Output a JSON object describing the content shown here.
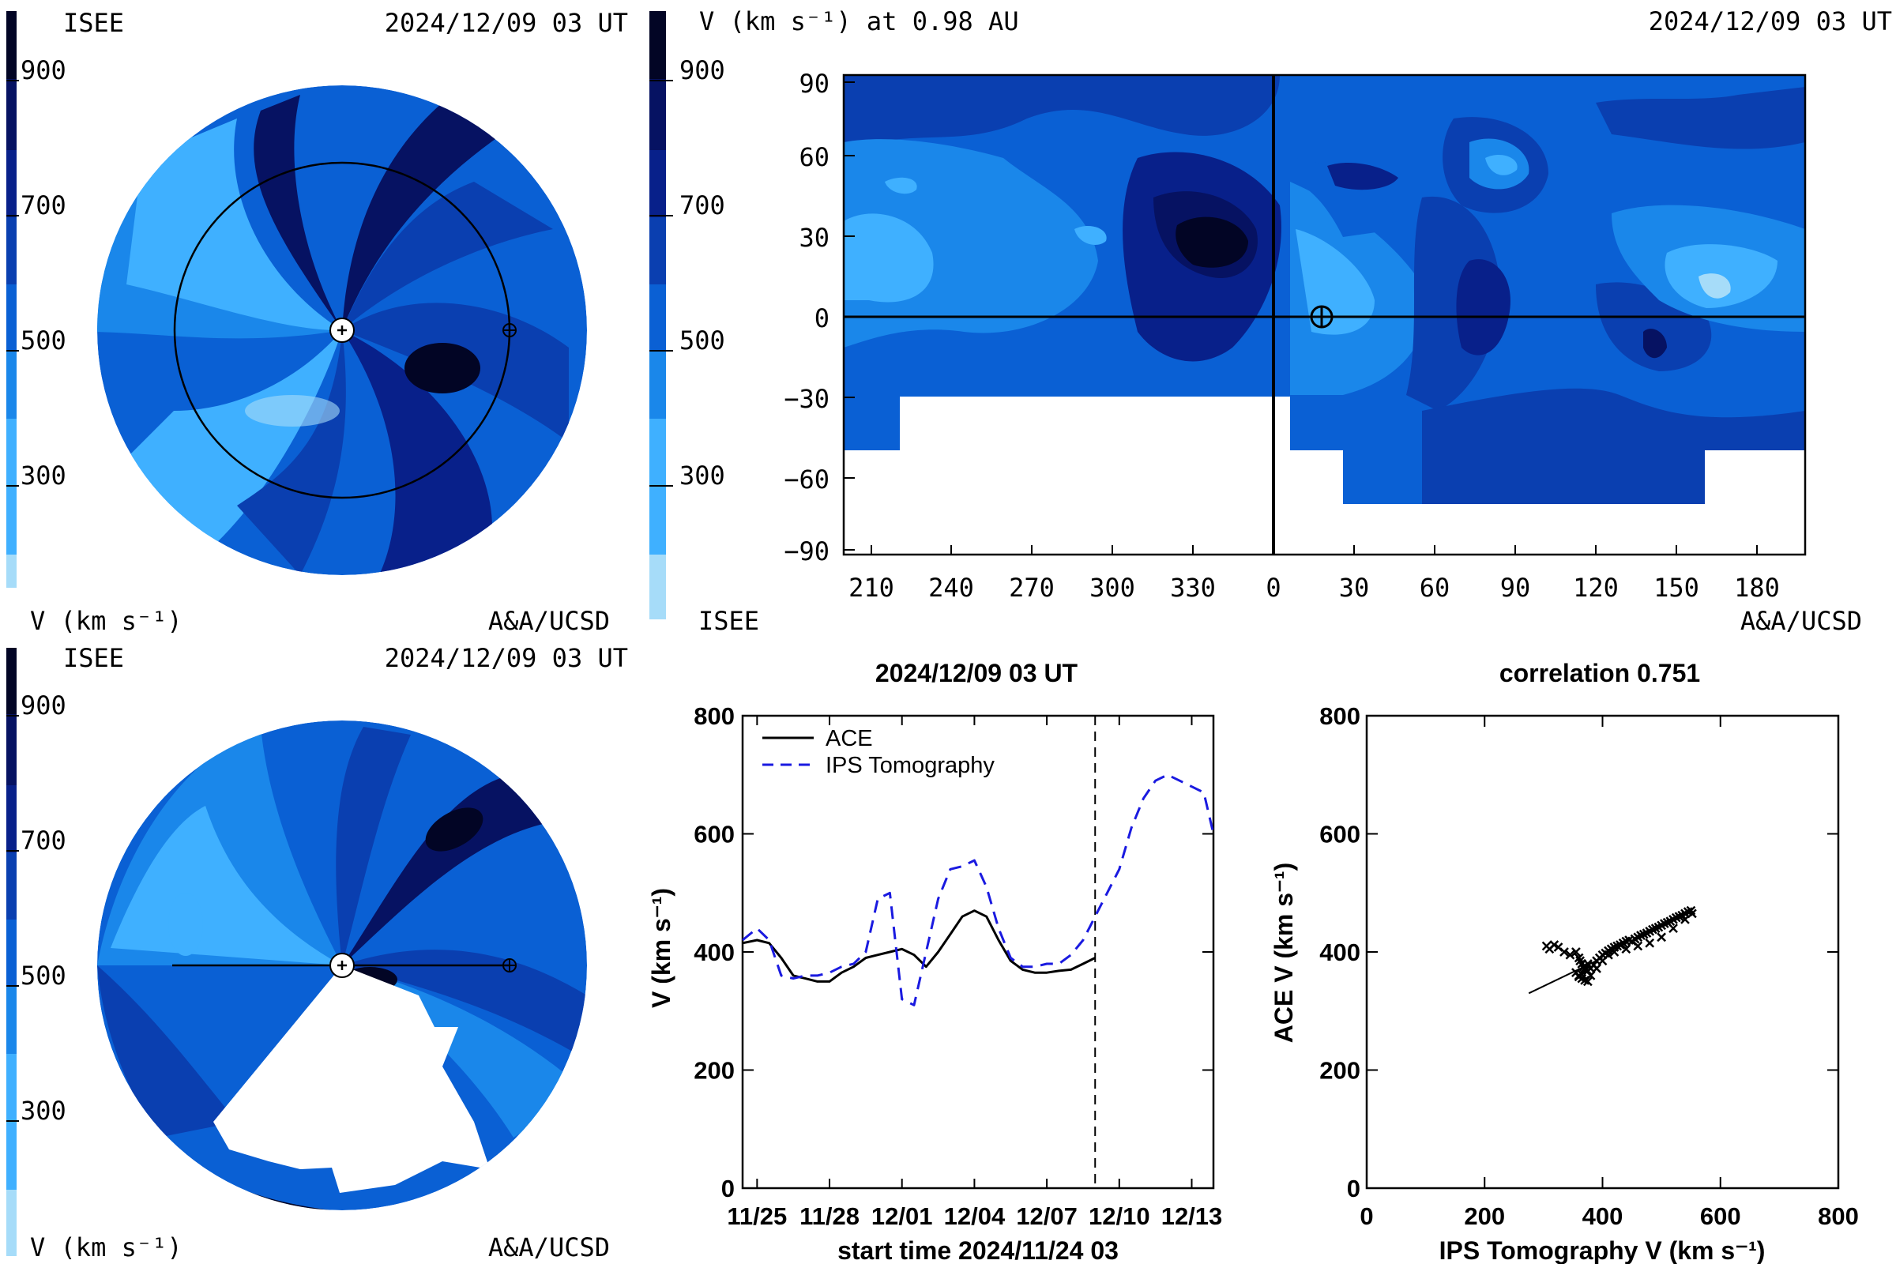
{
  "colors": {
    "levels": [
      "#a6dcf9",
      "#3fb0ff",
      "#1a87ea",
      "#0a60d4",
      "#0a3fb0",
      "#08208a",
      "#061262",
      "#020525"
    ],
    "background": "#ffffff",
    "ace_line": "#000000",
    "ips_line": "#1a1ae0"
  },
  "colorbar": {
    "ticks": [
      "900",
      "700",
      "500",
      "300"
    ],
    "tick_values": [
      900,
      700,
      500,
      300
    ],
    "range": [
      200,
      1000
    ]
  },
  "top_left": {
    "org": "ISEE",
    "time": "2024/12/09 03 UT",
    "units": "V (km s⁻¹)",
    "credit": "A&A/UCSD"
  },
  "bottom_left": {
    "org": "ISEE",
    "time": "2024/12/09 03 UT",
    "units": "V (km s⁻¹)",
    "credit": "A&A/UCSD"
  },
  "synoptic_map": {
    "title": "V (km s⁻¹) at 0.98 AU",
    "time": "2024/12/09 03 UT",
    "org": "ISEE",
    "credit": "A&A/UCSD",
    "lat_ticks": [
      "90",
      "60",
      "30",
      "0",
      "−30",
      "−60",
      "−90"
    ],
    "lon_ticks": [
      "210",
      "240",
      "270",
      "300",
      "330",
      "0",
      "30",
      "60",
      "90",
      "120",
      "150",
      "180"
    ]
  },
  "chart_data": [
    {
      "type": "line",
      "title": "2024/12/09 03 UT",
      "xlabel": "start time 2024/11/24 03",
      "ylabel": "V (km s⁻¹)",
      "x_ticks": [
        "11/25",
        "11/28",
        "12/01",
        "12/04",
        "12/07",
        "12/10",
        "12/13"
      ],
      "x_tick_days": [
        1,
        4,
        7,
        10,
        13,
        16,
        19
      ],
      "xlim_days": [
        0.4,
        19.9
      ],
      "y_ticks": [
        "800",
        "600",
        "400",
        "200",
        "0"
      ],
      "ylim": [
        0,
        800
      ],
      "now_marker_day": 15.0,
      "series": [
        {
          "name": "ACE",
          "style": "solid",
          "x": [
            0.4,
            1.0,
            1.5,
            2.0,
            2.5,
            3.0,
            3.5,
            4.0,
            4.5,
            5.0,
            5.5,
            6.0,
            6.5,
            7.0,
            7.5,
            8.0,
            8.5,
            9.0,
            9.5,
            10.0,
            10.5,
            11.0,
            11.5,
            12.0,
            12.5,
            13.0,
            13.5,
            14.0,
            14.5,
            15.0
          ],
          "y": [
            415,
            420,
            415,
            390,
            360,
            355,
            350,
            350,
            365,
            375,
            390,
            395,
            400,
            405,
            395,
            375,
            400,
            430,
            460,
            470,
            460,
            420,
            385,
            370,
            365,
            365,
            368,
            370,
            380,
            390
          ]
        },
        {
          "name": "IPS Tomography",
          "style": "dashed",
          "x": [
            0.4,
            1.0,
            1.5,
            2.0,
            2.5,
            3.0,
            3.5,
            4.0,
            4.5,
            5.0,
            5.5,
            6.0,
            6.5,
            7.0,
            7.5,
            8.0,
            8.5,
            9.0,
            9.5,
            10.0,
            10.5,
            11.0,
            11.5,
            12.0,
            12.5,
            13.0,
            13.5,
            14.0,
            14.5,
            15.0,
            15.5,
            16.0,
            16.5,
            17.0,
            17.5,
            18.0,
            18.5,
            19.0,
            19.5,
            19.9
          ],
          "y": [
            420,
            440,
            420,
            360,
            355,
            360,
            360,
            365,
            375,
            380,
            400,
            490,
            500,
            320,
            310,
            400,
            490,
            540,
            545,
            555,
            510,
            440,
            390,
            375,
            375,
            380,
            380,
            395,
            420,
            460,
            500,
            540,
            610,
            660,
            690,
            700,
            690,
            680,
            670,
            600
          ]
        }
      ]
    },
    {
      "type": "scatter",
      "title": "correlation 0.751",
      "xlabel": "IPS Tomography V (km s⁻¹)",
      "ylabel": "ACE V (km s⁻¹)",
      "x_ticks": [
        "0",
        "200",
        "400",
        "600",
        "800"
      ],
      "y_ticks": [
        "800",
        "600",
        "400",
        "200",
        "0"
      ],
      "xlim": [
        0,
        800
      ],
      "ylim": [
        0,
        800
      ],
      "fit_line": {
        "x": [
          275,
          400
        ],
        "y": [
          330,
          390
        ]
      },
      "points": {
        "x": [
          305,
          310,
          318,
          325,
          335,
          345,
          355,
          360,
          362,
          365,
          368,
          370,
          372,
          375,
          380,
          385,
          390,
          395,
          400,
          405,
          410,
          415,
          420,
          425,
          430,
          435,
          440,
          445,
          450,
          455,
          460,
          465,
          470,
          475,
          480,
          485,
          490,
          495,
          500,
          505,
          510,
          515,
          520,
          525,
          530,
          535,
          540,
          545,
          550,
          552,
          360,
          365,
          370,
          375,
          380,
          390,
          400,
          410,
          420,
          440,
          460,
          480,
          500,
          520,
          540,
          355,
          360,
          365,
          370,
          375
        ],
        "y": [
          410,
          405,
          412,
          408,
          400,
          395,
          400,
          390,
          385,
          380,
          375,
          372,
          370,
          368,
          372,
          378,
          385,
          390,
          395,
          398,
          402,
          405,
          408,
          410,
          412,
          415,
          418,
          420,
          418,
          422,
          425,
          428,
          430,
          432,
          435,
          438,
          440,
          442,
          445,
          448,
          450,
          452,
          455,
          458,
          460,
          462,
          465,
          468,
          470,
          465,
          360,
          355,
          352,
          350,
          360,
          372,
          385,
          395,
          400,
          405,
          410,
          415,
          425,
          440,
          455,
          365,
          358,
          362,
          370,
          380
        ]
      }
    }
  ]
}
